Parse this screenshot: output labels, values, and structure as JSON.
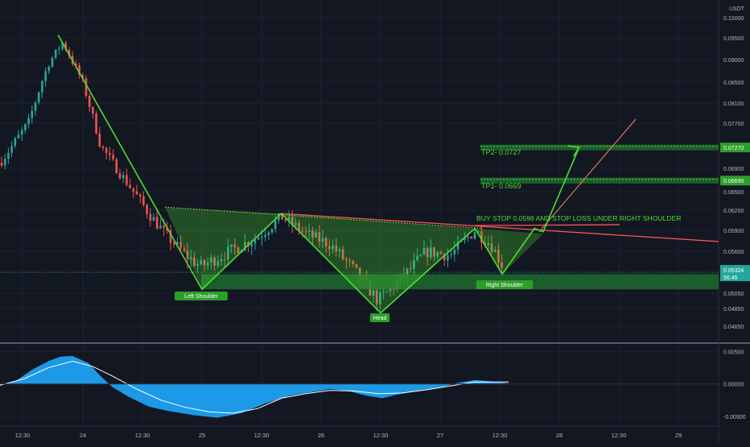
{
  "chart_data": [
    {
      "type": "candlestick",
      "currency_label": "USDT",
      "y_ticks": [
        "0.10000",
        "0.09500",
        "0.09000",
        "0.08500",
        "0.08100",
        "0.07700",
        "0.06900",
        "0.06500",
        "0.06200",
        "0.05900",
        "0.05600",
        "0.05050",
        "0.04850",
        "0.04650"
      ],
      "x_ticks": [
        "12:30",
        "24",
        "12:30",
        "25",
        "12:30",
        "26",
        "12:30",
        "27",
        "12:30",
        "28",
        "12:30",
        "29"
      ],
      "current_price": "0.05324",
      "countdown": "56:45",
      "price_tags": [
        "0.07270",
        "0.06690"
      ],
      "pattern_points": [
        {
          "time": "23 19:00",
          "price": 0.0957
        },
        {
          "time": "25 00:00",
          "price": 0.051
        },
        {
          "time": "25 16:00",
          "price": 0.0615
        },
        {
          "time": "26 12:00",
          "price": 0.048
        },
        {
          "time": "27 07:00",
          "price": 0.0593
        },
        {
          "time": "27 12:30",
          "price": 0.053
        },
        {
          "time": "27 19:00",
          "price": 0.0593
        },
        {
          "time": "28 04:00",
          "price": 0.0727
        }
      ],
      "annotations": {
        "left_shoulder": "Left Shoulder",
        "head": "Head",
        "right_shoulder": "Right Shoulder",
        "tp2": "TP2- 0.0727",
        "tp1": "TP1- 0.0669",
        "buy_note": "BUY STOP 0.0598 AND STOP LOSS UNDER RIGHT SHOULDER"
      },
      "zones": [
        {
          "name": "TP2",
          "from": 0.0722,
          "to": 0.0732
        },
        {
          "name": "TP1",
          "from": 0.0664,
          "to": 0.0674
        },
        {
          "name": "support",
          "from": 0.051,
          "to": 0.053
        }
      ],
      "colors": {
        "up": "#26a69a",
        "down": "#ef5350",
        "pattern": "#4cdd30",
        "zone": "#1f6b2d",
        "neckline": "#f2575b",
        "current": "#26a69a"
      }
    },
    {
      "type": "area",
      "name": "oscillator",
      "y_ticks": [
        "0.00500",
        "0.00000",
        "-0.00500"
      ],
      "ylim": [
        -0.0055,
        0.0053
      ],
      "colors": {
        "fill": "#1da1f2",
        "signal": "#ffffff"
      }
    }
  ]
}
